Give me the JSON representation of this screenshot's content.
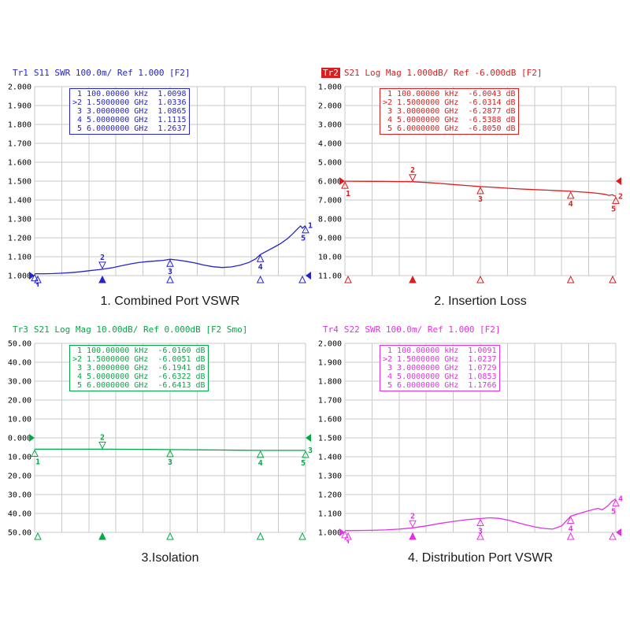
{
  "chart_data": [
    {
      "type": "line",
      "title": "1. Combined Port VSWR",
      "header": {
        "trace": "Tr1",
        "settings": "S11 SWR 100.0m/ Ref 1.000 [F2]",
        "active_trace": false
      },
      "color": "#2424cf",
      "trace_number": "1",
      "grid": true,
      "x_min_ghz": 0.0001,
      "x_max_ghz": 6,
      "y_min": 1.0,
      "y_max": 2.0,
      "ref_level": 1.0,
      "y_ticks": [
        "2.000",
        "1.900",
        "1.800",
        "1.700",
        "1.600",
        "1.500",
        "1.400",
        "1.300",
        "1.200",
        "1.100",
        "1.000"
      ],
      "markers": [
        {
          "label": "1",
          "freq": "100.00000 kHz",
          "value": "1.0098",
          "x_ghz": 0.0001,
          "y": 1.0098,
          "active": false
        },
        {
          "label": "2",
          "freq": "1.5000000 GHz",
          "value": "1.0336",
          "x_ghz": 1.5,
          "y": 1.0336,
          "active": true
        },
        {
          "label": "3",
          "freq": "3.0000000 GHz",
          "value": "1.0865",
          "x_ghz": 3.0,
          "y": 1.0865,
          "active": false
        },
        {
          "label": "4",
          "freq": "5.0000000 GHz",
          "value": "1.1115",
          "x_ghz": 5.0,
          "y": 1.1115,
          "active": false
        },
        {
          "label": "5",
          "freq": "6.0000000 GHz",
          "value": "1.2637",
          "x_ghz": 6.0,
          "y": 1.2637,
          "active": false
        }
      ],
      "trace": [
        [
          0.0001,
          1.0098
        ],
        [
          0.2,
          1.01
        ],
        [
          0.4,
          1.011
        ],
        [
          0.6,
          1.013
        ],
        [
          0.8,
          1.016
        ],
        [
          1.0,
          1.02
        ],
        [
          1.2,
          1.026
        ],
        [
          1.5,
          1.0336
        ],
        [
          1.7,
          1.041
        ],
        [
          1.9,
          1.051
        ],
        [
          2.1,
          1.061
        ],
        [
          2.3,
          1.069
        ],
        [
          2.5,
          1.074
        ],
        [
          2.7,
          1.078
        ],
        [
          2.85,
          1.081
        ],
        [
          3.0,
          1.0865
        ],
        [
          3.15,
          1.083
        ],
        [
          3.35,
          1.076
        ],
        [
          3.55,
          1.067
        ],
        [
          3.75,
          1.056
        ],
        [
          3.95,
          1.047
        ],
        [
          4.15,
          1.043
        ],
        [
          4.35,
          1.046
        ],
        [
          4.55,
          1.055
        ],
        [
          4.75,
          1.07
        ],
        [
          4.9,
          1.089
        ],
        [
          5.0,
          1.1115
        ],
        [
          5.15,
          1.131
        ],
        [
          5.3,
          1.15
        ],
        [
          5.45,
          1.17
        ],
        [
          5.6,
          1.196
        ],
        [
          5.72,
          1.222
        ],
        [
          5.82,
          1.247
        ],
        [
          5.89,
          1.263
        ],
        [
          5.93,
          1.251
        ],
        [
          5.97,
          1.259
        ],
        [
          6.0,
          1.2637
        ]
      ]
    },
    {
      "type": "line",
      "title": "2. Insertion Loss",
      "header": {
        "trace": "Tr2",
        "settings": "S21 Log Mag 1.000dB/ Ref -6.000dB [F2]",
        "active_trace": true
      },
      "color": "#dd1d1d",
      "trace_number": "2",
      "grid": true,
      "x_min_ghz": 0.0001,
      "x_max_ghz": 6,
      "y_min": -11.0,
      "y_max": -1.0,
      "ref_level": -6.0,
      "y_ticks": [
        "-1.000",
        "-2.000",
        "-3.000",
        "-4.000",
        "-5.000",
        "-6.000",
        "-7.000",
        "-8.000",
        "-9.000",
        "-10.00",
        "-11.00"
      ],
      "markers": [
        {
          "label": "1",
          "freq": "100.00000 kHz",
          "value": "-6.0043 dB",
          "x_ghz": 0.0001,
          "y": -6.0043,
          "active": false
        },
        {
          "label": "2",
          "freq": "1.5000000 GHz",
          "value": "-6.0314 dB",
          "x_ghz": 1.5,
          "y": -6.0314,
          "active": true
        },
        {
          "label": "3",
          "freq": "3.0000000 GHz",
          "value": "-6.2877 dB",
          "x_ghz": 3.0,
          "y": -6.2877,
          "active": false
        },
        {
          "label": "4",
          "freq": "5.0000000 GHz",
          "value": "-6.5388 dB",
          "x_ghz": 5.0,
          "y": -6.5388,
          "active": false
        },
        {
          "label": "5",
          "freq": "6.0000000 GHz",
          "value": "-6.8050 dB",
          "x_ghz": 6.0,
          "y": -6.805,
          "active": false
        }
      ],
      "trace": [
        [
          0.0001,
          -6.0043
        ],
        [
          0.3,
          -6.008
        ],
        [
          0.6,
          -6.013
        ],
        [
          0.9,
          -6.018
        ],
        [
          1.2,
          -6.024
        ],
        [
          1.5,
          -6.0314
        ],
        [
          1.8,
          -6.07
        ],
        [
          2.1,
          -6.12
        ],
        [
          2.4,
          -6.18
        ],
        [
          2.7,
          -6.235
        ],
        [
          3.0,
          -6.2877
        ],
        [
          3.3,
          -6.33
        ],
        [
          3.6,
          -6.375
        ],
        [
          3.9,
          -6.415
        ],
        [
          4.2,
          -6.45
        ],
        [
          4.5,
          -6.48
        ],
        [
          4.75,
          -6.51
        ],
        [
          5.0,
          -6.5388
        ],
        [
          5.2,
          -6.565
        ],
        [
          5.4,
          -6.6
        ],
        [
          5.6,
          -6.645
        ],
        [
          5.75,
          -6.695
        ],
        [
          5.85,
          -6.755
        ],
        [
          5.92,
          -6.72
        ],
        [
          6.0,
          -6.805
        ]
      ]
    },
    {
      "type": "line",
      "title": "3.Isolation",
      "header": {
        "trace": "Tr3",
        "settings": "S21 Log Mag 10.00dB/ Ref 0.000dB [F2 Smo]",
        "active_trace": false
      },
      "color": "#00aa44",
      "trace_number": "3",
      "grid": true,
      "x_min_ghz": 0.0001,
      "x_max_ghz": 6,
      "y_min": -50.0,
      "y_max": 50.0,
      "ref_level": 0.0,
      "y_ticks": [
        "50.00",
        "40.00",
        "30.00",
        "20.00",
        "10.00",
        "0.000",
        "-10.00",
        "-20.00",
        "-30.00",
        "-40.00",
        "-50.00"
      ],
      "markers": [
        {
          "label": "1",
          "freq": "100.00000 kHz",
          "value": "-6.0160 dB",
          "x_ghz": 0.0001,
          "y": -6.016,
          "active": false
        },
        {
          "label": "2",
          "freq": "1.5000000 GHz",
          "value": "-6.0051 dB",
          "x_ghz": 1.5,
          "y": -6.0051,
          "active": true
        },
        {
          "label": "3",
          "freq": "3.0000000 GHz",
          "value": "-6.1941 dB",
          "x_ghz": 3.0,
          "y": -6.1941,
          "active": false
        },
        {
          "label": "4",
          "freq": "5.0000000 GHz",
          "value": "-6.6322 dB",
          "x_ghz": 5.0,
          "y": -6.6322,
          "active": false
        },
        {
          "label": "5",
          "freq": "6.0000000 GHz",
          "value": "-6.6413 dB",
          "x_ghz": 6.0,
          "y": -6.6413,
          "active": false
        }
      ],
      "trace": [
        [
          0.0001,
          -6.016
        ],
        [
          0.5,
          -6.012
        ],
        [
          1.0,
          -6.008
        ],
        [
          1.5,
          -6.0051
        ],
        [
          2.0,
          -6.05
        ],
        [
          2.5,
          -6.12
        ],
        [
          3.0,
          -6.1941
        ],
        [
          3.5,
          -6.3
        ],
        [
          4.0,
          -6.42
        ],
        [
          4.5,
          -6.54
        ],
        [
          5.0,
          -6.6322
        ],
        [
          5.5,
          -6.638
        ],
        [
          6.0,
          -6.6413
        ]
      ]
    },
    {
      "type": "line",
      "title": "4. Distribution  Port VSWR",
      "header": {
        "trace": "Tr4",
        "settings": "S22 SWR 100.0m/ Ref 1.000 [F2]",
        "active_trace": false
      },
      "color": "#e431e4",
      "trace_number": "4",
      "grid": true,
      "x_min_ghz": 0.0001,
      "x_max_ghz": 6,
      "y_min": 1.0,
      "y_max": 2.0,
      "ref_level": 1.0,
      "y_ticks": [
        "2.000",
        "1.900",
        "1.800",
        "1.700",
        "1.600",
        "1.500",
        "1.400",
        "1.300",
        "1.200",
        "1.100",
        "1.000"
      ],
      "markers": [
        {
          "label": "1",
          "freq": "100.00000 kHz",
          "value": "1.0091",
          "x_ghz": 0.0001,
          "y": 1.0091,
          "active": false
        },
        {
          "label": "2",
          "freq": "1.5000000 GHz",
          "value": "1.0237",
          "x_ghz": 1.5,
          "y": 1.0237,
          "active": true
        },
        {
          "label": "3",
          "freq": "3.0000000 GHz",
          "value": "1.0729",
          "x_ghz": 3.0,
          "y": 1.0729,
          "active": false
        },
        {
          "label": "4",
          "freq": "5.0000000 GHz",
          "value": "1.0853",
          "x_ghz": 5.0,
          "y": 1.0853,
          "active": false
        },
        {
          "label": "5",
          "freq": "6.0000000 GHz",
          "value": "1.1766",
          "x_ghz": 6.0,
          "y": 1.1766,
          "active": false
        }
      ],
      "trace": [
        [
          0.0001,
          1.0091
        ],
        [
          0.3,
          1.01
        ],
        [
          0.6,
          1.011
        ],
        [
          0.9,
          1.013
        ],
        [
          1.2,
          1.017
        ],
        [
          1.5,
          1.0237
        ],
        [
          1.8,
          1.034
        ],
        [
          2.1,
          1.047
        ],
        [
          2.4,
          1.058
        ],
        [
          2.7,
          1.067
        ],
        [
          3.0,
          1.0729
        ],
        [
          3.2,
          1.077
        ],
        [
          3.4,
          1.074
        ],
        [
          3.6,
          1.066
        ],
        [
          3.8,
          1.053
        ],
        [
          4.0,
          1.04
        ],
        [
          4.2,
          1.029
        ],
        [
          4.4,
          1.021
        ],
        [
          4.6,
          1.017
        ],
        [
          4.8,
          1.034
        ],
        [
          5.0,
          1.0853
        ],
        [
          5.15,
          1.097
        ],
        [
          5.3,
          1.108
        ],
        [
          5.45,
          1.118
        ],
        [
          5.6,
          1.127
        ],
        [
          5.7,
          1.119
        ],
        [
          5.82,
          1.14
        ],
        [
          5.92,
          1.165
        ],
        [
          6.0,
          1.1766
        ]
      ]
    }
  ]
}
